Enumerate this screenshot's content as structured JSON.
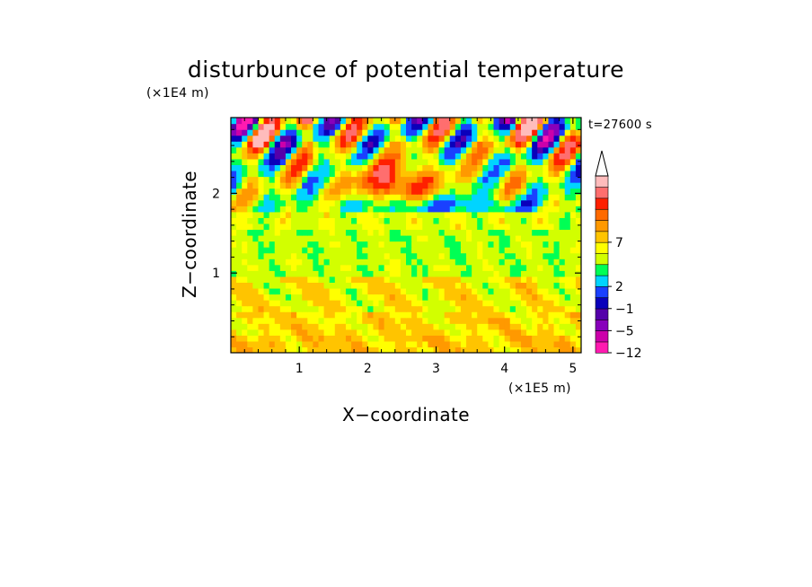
{
  "chart_data": {
    "type": "heatmap",
    "title": "disturbunce of potential temperature",
    "time_label": "t=27600 s",
    "xlabel": "X−coordinate",
    "ylabel": "Z−coordinate",
    "x_unit": "(×1E5 m)",
    "y_unit": "(×1E4 m)",
    "xlim": [
      0,
      5.12
    ],
    "ylim": [
      0,
      2.95
    ],
    "x_ticks": [
      1,
      2,
      3,
      4,
      5
    ],
    "x_tick_labels": [
      "1",
      "2",
      "3",
      "4",
      "5"
    ],
    "y_ticks": [
      1,
      2
    ],
    "y_tick_labels": [
      "1",
      "2"
    ],
    "colorbar": {
      "levels": [
        -12,
        -10,
        -8,
        -7,
        -5,
        -4,
        -2,
        -1,
        0,
        1,
        2,
        3,
        5,
        7,
        8,
        10
      ],
      "labeled_ticks": [
        {
          "value": 10,
          "label": "7"
        },
        {
          "value": 6,
          "label": "2"
        },
        {
          "value": 4,
          "label": "−1"
        },
        {
          "value": 2,
          "label": "−5"
        },
        {
          "value": 0,
          "label": "−12"
        }
      ],
      "colors": [
        "#ff1ab0",
        "#cc00aa",
        "#8800bb",
        "#5500aa",
        "#0a00bb",
        "#1a40ff",
        "#00d4ff",
        "#00ff55",
        "#d2ff00",
        "#ffff00",
        "#ffc400",
        "#ff9900",
        "#ff6a00",
        "#ff2000",
        "#ff6e6e",
        "#ffbcbc"
      ],
      "extend": "max"
    },
    "field": {
      "nx": 64,
      "nz": 40,
      "note_free": true
    }
  }
}
